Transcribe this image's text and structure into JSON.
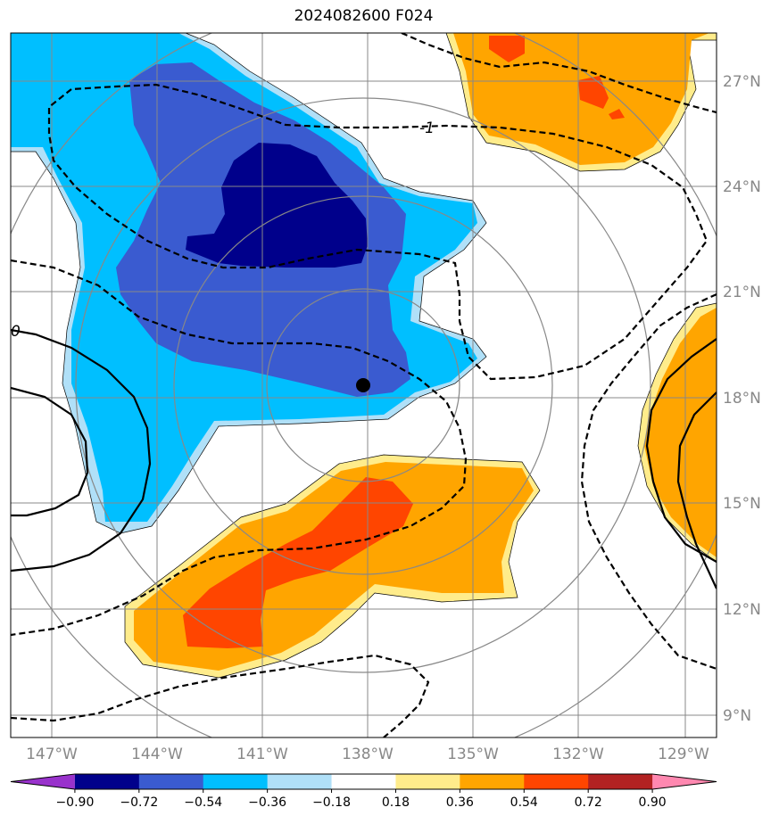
{
  "title": "2024082600 F024",
  "map": {
    "lon_labels": [
      "147°W",
      "144°W",
      "141°W",
      "138°W",
      "135°W",
      "132°W",
      "129°W"
    ],
    "lat_labels": [
      "27°N",
      "24°N",
      "21°N",
      "18°N",
      "15°N",
      "12°N",
      "9°N"
    ],
    "contour_labels": [
      "-1",
      "0"
    ],
    "storm_center": {
      "lon": -138.0,
      "lat": 18.4
    },
    "colors": {
      "dark_blue": "#00008b",
      "royal_blue": "#3a5bd0",
      "sky_blue": "#00bfff",
      "light_blue": "#b0e0f8",
      "pale_yellow": "#ffec8b",
      "orange": "#ffa500",
      "red_orange": "#ff4500",
      "grid": "#888888"
    }
  },
  "colorbar": {
    "ticks": [
      "−0.90",
      "−0.72",
      "−0.54",
      "−0.36",
      "−0.18",
      "0.18",
      "0.36",
      "0.54",
      "0.72",
      "0.90"
    ],
    "colors": [
      "#9932cc",
      "#00008b",
      "#3a5bd0",
      "#00bfff",
      "#b0e0f8",
      "#ffffff",
      "#ffec8b",
      "#ffa500",
      "#ff4500",
      "#b22222",
      "#ff88b0"
    ]
  }
}
